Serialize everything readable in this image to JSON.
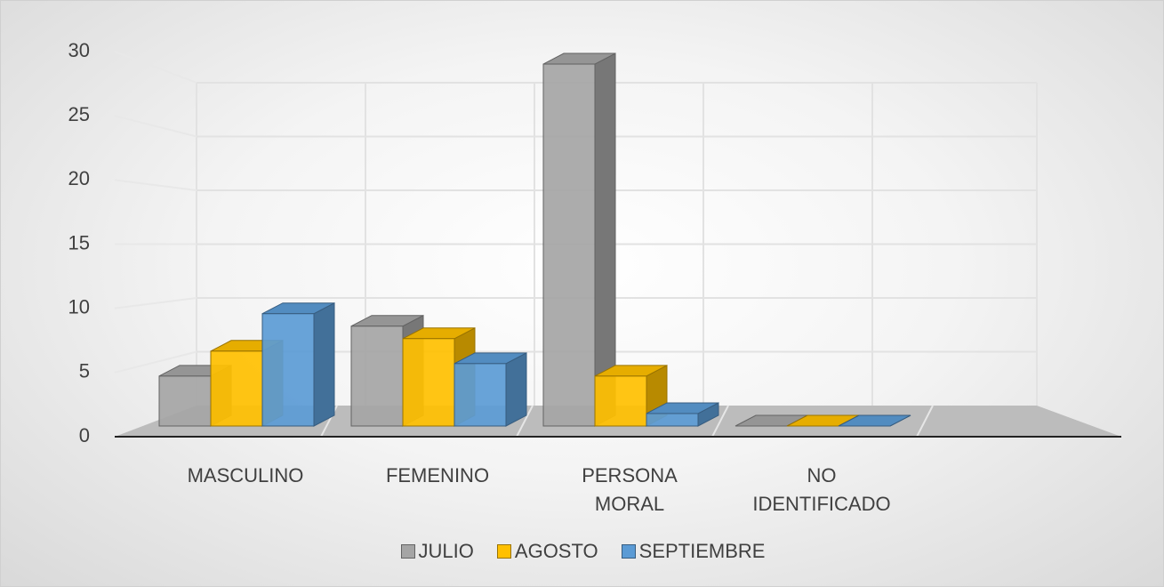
{
  "chart_data": {
    "type": "bar3d",
    "categories": [
      "MASCULINO",
      "FEMENINO",
      "PERSONA MORAL",
      "NO IDENTIFICADO"
    ],
    "series": [
      {
        "name": "JULIO",
        "color": "#a5a5a5",
        "values": [
          4,
          8,
          29,
          0
        ]
      },
      {
        "name": "AGOSTO",
        "color": "#ffc000",
        "values": [
          6,
          7,
          4,
          0
        ]
      },
      {
        "name": "SEPTIEMBRE",
        "color": "#5b9bd5",
        "values": [
          9,
          5,
          1,
          0
        ]
      }
    ],
    "ylim": [
      0,
      30
    ],
    "yticks": [
      0,
      5,
      10,
      15,
      20,
      25,
      30
    ],
    "grid": true,
    "legend": "bottom"
  }
}
